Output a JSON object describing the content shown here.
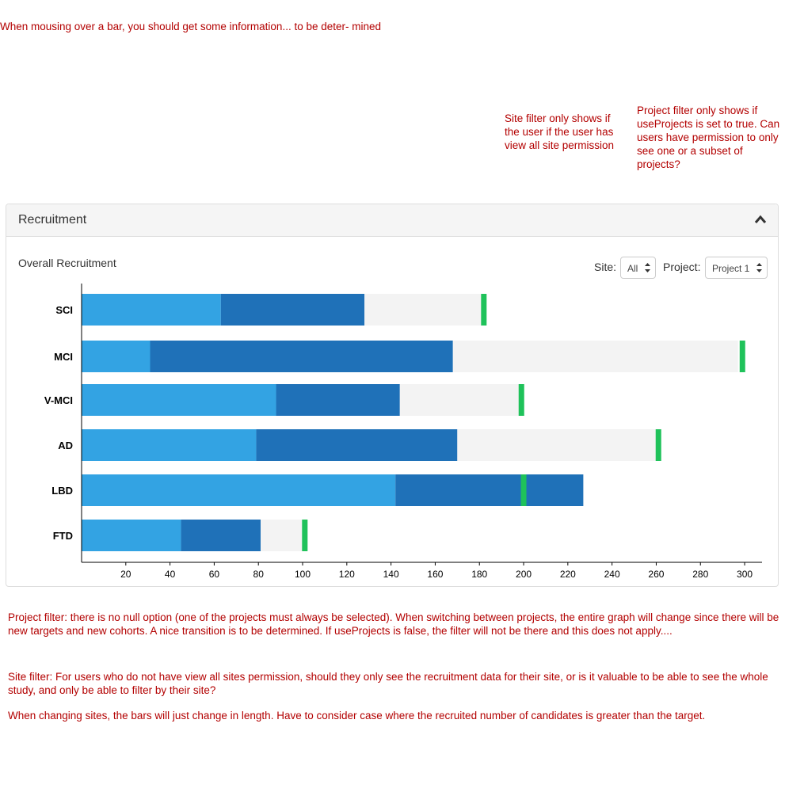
{
  "notes": {
    "top": "When mousing over a bar, you should get some information... to be deter- mined",
    "site_filter": "Site filter only shows if the user if the user has view all site permission",
    "project_filter": "Project filter only shows if useProjects is set to true. Can users have permission to only see one or a subset of projects?",
    "project_filter_detail": "Project filter: there is no null option (one of the projects must always be selected). When switching between projects, the entire graph will change since there will be new targets and new cohorts. A nice transition is to be determined. If useProjects is false, the filter will not be there and this does not apply....",
    "site_filter_detail": "Site filter: For users who do not have view all sites permission, should they only see the recruitment data for their site, or is it valuable to be able to see the whole study, and only be able to filter by their site?",
    "sites_change": "When changing sites, the bars will just change in length. Have to consider case where the recruited number of candidates is greater than the target."
  },
  "panel": {
    "title": "Recruitment",
    "chart_title": "Overall Recruitment"
  },
  "filters": {
    "site_label": "Site:",
    "site_value": "All",
    "project_label": "Project:",
    "project_value": "Project 1"
  },
  "colors": {
    "note_text": "#b30000",
    "segment_a": "#33a3e3",
    "segment_b": "#1f71b8",
    "remaining": "#f3f3f3",
    "target": "#1fc25a"
  },
  "chart_data": {
    "type": "bar",
    "orientation": "horizontal",
    "stacked": true,
    "categories": [
      "SCI",
      "MCI",
      "V-MCI",
      "AD",
      "LBD",
      "FTD"
    ],
    "series": [
      {
        "values": [
          63,
          31,
          88,
          79,
          142,
          45
        ]
      },
      {
        "values": [
          65,
          137,
          56,
          91,
          85,
          36
        ]
      },
      {
        "values": [
          54,
          129,
          55,
          90,
          0,
          19
        ]
      }
    ],
    "targets": [
      182,
      299,
      199,
      261,
      200,
      101
    ],
    "xlim": [
      0,
      305
    ],
    "xticks": [
      20,
      40,
      60,
      80,
      100,
      120,
      140,
      160,
      180,
      200,
      220,
      240,
      260,
      280,
      300
    ],
    "xlabel": "",
    "ylabel": ""
  }
}
